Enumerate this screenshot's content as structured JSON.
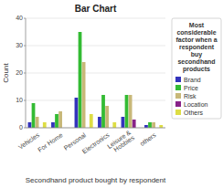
{
  "chart_data": {
    "type": "bar",
    "title": "Bar Chart",
    "x_label": "Secondhand product bought by respondent",
    "y_label": "Count",
    "legend_title": "Most\nconsiderable\nfactor when a\nrespondent\nbuy\nsecondhand\nproducts",
    "categories": [
      "Vehicles",
      "For Home",
      "Personal",
      "Electronics",
      "Leisure &\nHobbies",
      "others"
    ],
    "series": [
      {
        "name": "Brand",
        "color": "#3333bb",
        "values": [
          2,
          2,
          11,
          4,
          4,
          1
        ]
      },
      {
        "name": "Price",
        "color": "#33bb33",
        "values": [
          9,
          5,
          35,
          12,
          12,
          2
        ]
      },
      {
        "name": "Risk",
        "color": "#c8b878",
        "values": [
          4,
          6,
          24,
          8,
          12,
          2
        ]
      },
      {
        "name": "Location",
        "color": "#882288",
        "values": [
          0,
          0,
          0,
          0,
          3,
          0
        ]
      },
      {
        "name": "Others",
        "color": "#dddd44",
        "values": [
          2,
          0,
          5,
          2,
          0,
          1
        ]
      }
    ],
    "ylim": [
      0,
      40
    ],
    "yticks": [
      0,
      10,
      20,
      30,
      40
    ],
    "grid": true,
    "legend": "right"
  }
}
